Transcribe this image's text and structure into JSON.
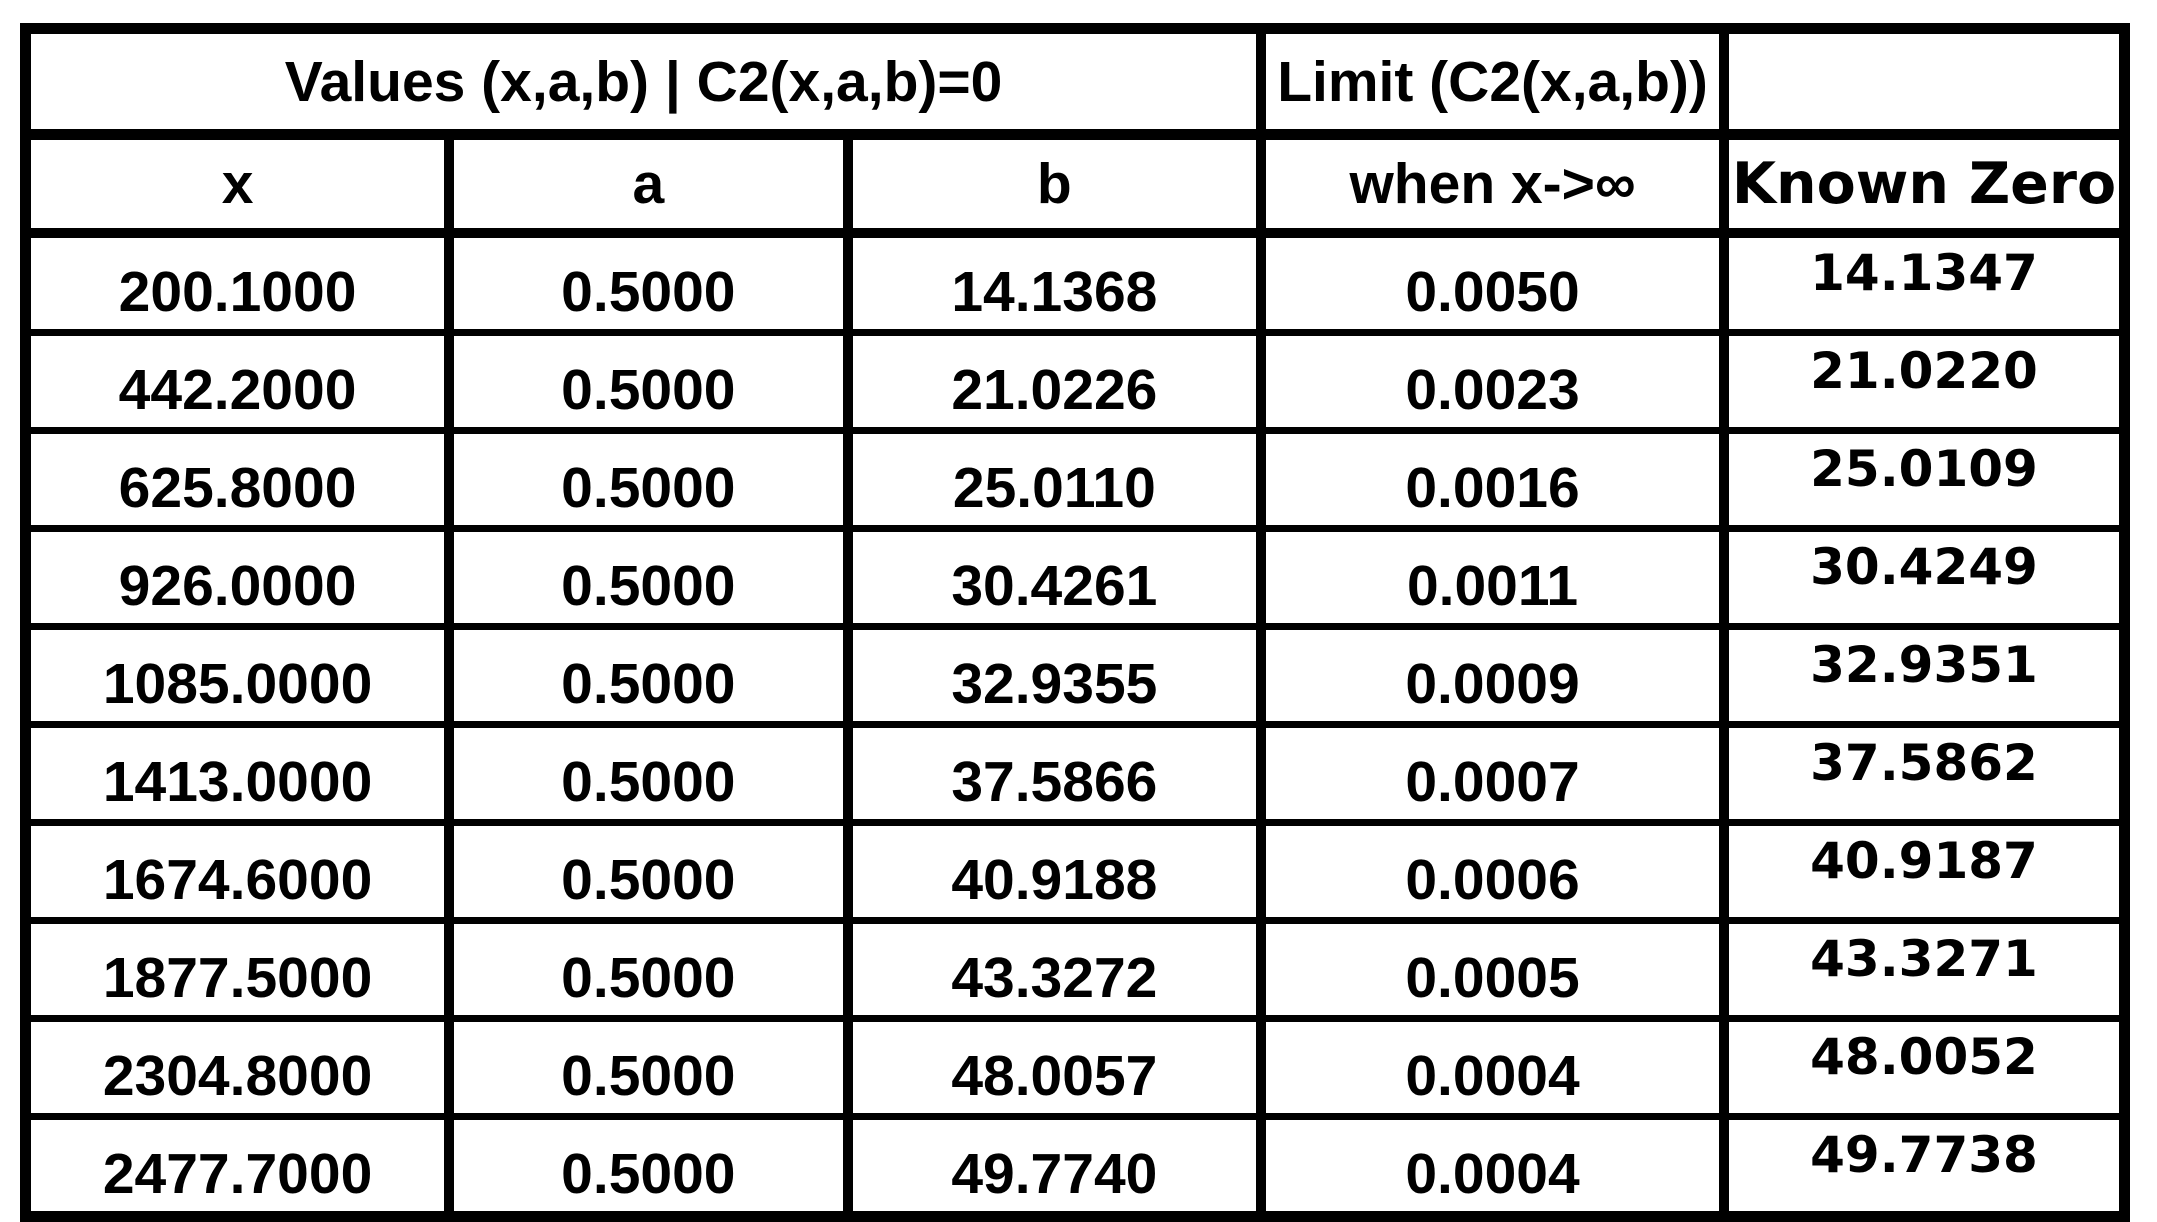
{
  "table": {
    "top_header": {
      "values_title": "Values (x,a,b) | C2(x,a,b)=0",
      "limit_title": "Limit (C2(x,a,b))",
      "corner": ""
    },
    "columns": [
      "x",
      "a",
      "b",
      "when x->∞",
      "Known Zero"
    ],
    "rows": [
      [
        "200.1000",
        "0.5000",
        "14.1368",
        "0.0050",
        "14.1347"
      ],
      [
        "442.2000",
        "0.5000",
        "21.0226",
        "0.0023",
        "21.0220"
      ],
      [
        "625.8000",
        "0.5000",
        "25.0110",
        "0.0016",
        "25.0109"
      ],
      [
        "926.0000",
        "0.5000",
        "30.4261",
        "0.0011",
        "30.4249"
      ],
      [
        "1085.0000",
        "0.5000",
        "32.9355",
        "0.0009",
        "32.9351"
      ],
      [
        "1413.0000",
        "0.5000",
        "37.5866",
        "0.0007",
        "37.5862"
      ],
      [
        "1674.6000",
        "0.5000",
        "40.9188",
        "0.0006",
        "40.9187"
      ],
      [
        "1877.5000",
        "0.5000",
        "43.3272",
        "0.0005",
        "43.3271"
      ],
      [
        "2304.8000",
        "0.5000",
        "48.0057",
        "0.0004",
        "48.0052"
      ],
      [
        "2477.7000",
        "0.5000",
        "49.7740",
        "0.0004",
        "49.7738"
      ]
    ]
  },
  "colors": {
    "border": "#000000",
    "text": "#000000",
    "background": "#ffffff"
  },
  "chart_data": {
    "type": "table",
    "title": "Values (x,a,b) | C2(x,a,b)=0",
    "column_groups": [
      {
        "label": "Values (x,a,b) | C2(x,a,b)=0",
        "span": [
          0,
          2
        ]
      },
      {
        "label": "Limit (C2(x,a,b))",
        "span": [
          3,
          3
        ]
      },
      {
        "label": "",
        "span": [
          4,
          4
        ]
      }
    ],
    "columns": [
      "x",
      "a",
      "b",
      "when x->∞",
      "Known Zero"
    ],
    "rows": [
      [
        200.1,
        0.5,
        14.1368,
        0.005,
        14.1347
      ],
      [
        442.2,
        0.5,
        21.0226,
        0.0023,
        21.022
      ],
      [
        625.8,
        0.5,
        25.011,
        0.0016,
        25.0109
      ],
      [
        926.0,
        0.5,
        30.4261,
        0.0011,
        30.4249
      ],
      [
        1085.0,
        0.5,
        32.9355,
        0.0009,
        32.9351
      ],
      [
        1413.0,
        0.5,
        37.5866,
        0.0007,
        37.5862
      ],
      [
        1674.6,
        0.5,
        40.9188,
        0.0006,
        40.9187
      ],
      [
        1877.5,
        0.5,
        43.3272,
        0.0005,
        43.3271
      ],
      [
        2304.8,
        0.5,
        48.0057,
        0.0004,
        48.0052
      ],
      [
        2477.7,
        0.5,
        49.774,
        0.0004,
        49.7738
      ]
    ],
    "grid": true,
    "notes": "Black-bordered data table; last column (Known Zero) rendered in a different font than the rest"
  }
}
